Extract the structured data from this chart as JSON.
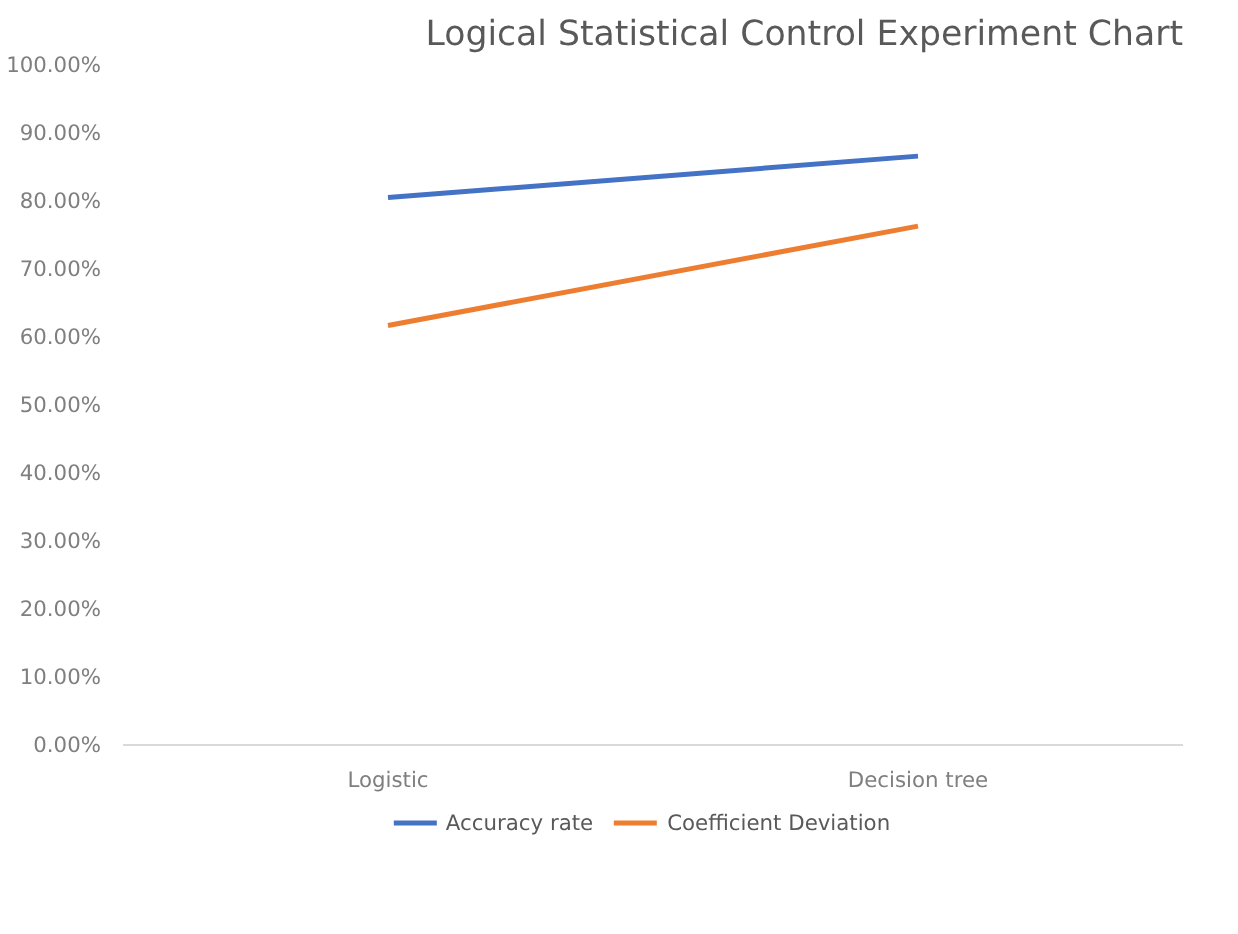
{
  "chart_data": {
    "type": "line",
    "title": "Logical Statistical Control Experiment Chart",
    "categories": [
      "Logistic",
      "Decision tree"
    ],
    "series": [
      {
        "name": "Accuracy rate",
        "color": "#4472c4",
        "values": [
          80.5,
          86.6
        ]
      },
      {
        "name": "Coefficient Deviation",
        "color": "#ed7d31",
        "values": [
          61.7,
          76.3
        ]
      }
    ],
    "ylim": [
      0,
      100
    ],
    "yticks": [
      {
        "value": 0,
        "label": "0.00%"
      },
      {
        "value": 10,
        "label": "10.00%"
      },
      {
        "value": 20,
        "label": "20.00%"
      },
      {
        "value": 30,
        "label": "30.00%"
      },
      {
        "value": 40,
        "label": "40.00%"
      },
      {
        "value": 50,
        "label": "50.00%"
      },
      {
        "value": 60,
        "label": "60.00%"
      },
      {
        "value": 70,
        "label": "70.00%"
      },
      {
        "value": 80,
        "label": "80.00%"
      },
      {
        "value": 90,
        "label": "90.00%"
      },
      {
        "value": 100,
        "label": "100.00%"
      }
    ],
    "grid": false,
    "legend": "bottom",
    "marker": "none",
    "line_style": "solid"
  }
}
